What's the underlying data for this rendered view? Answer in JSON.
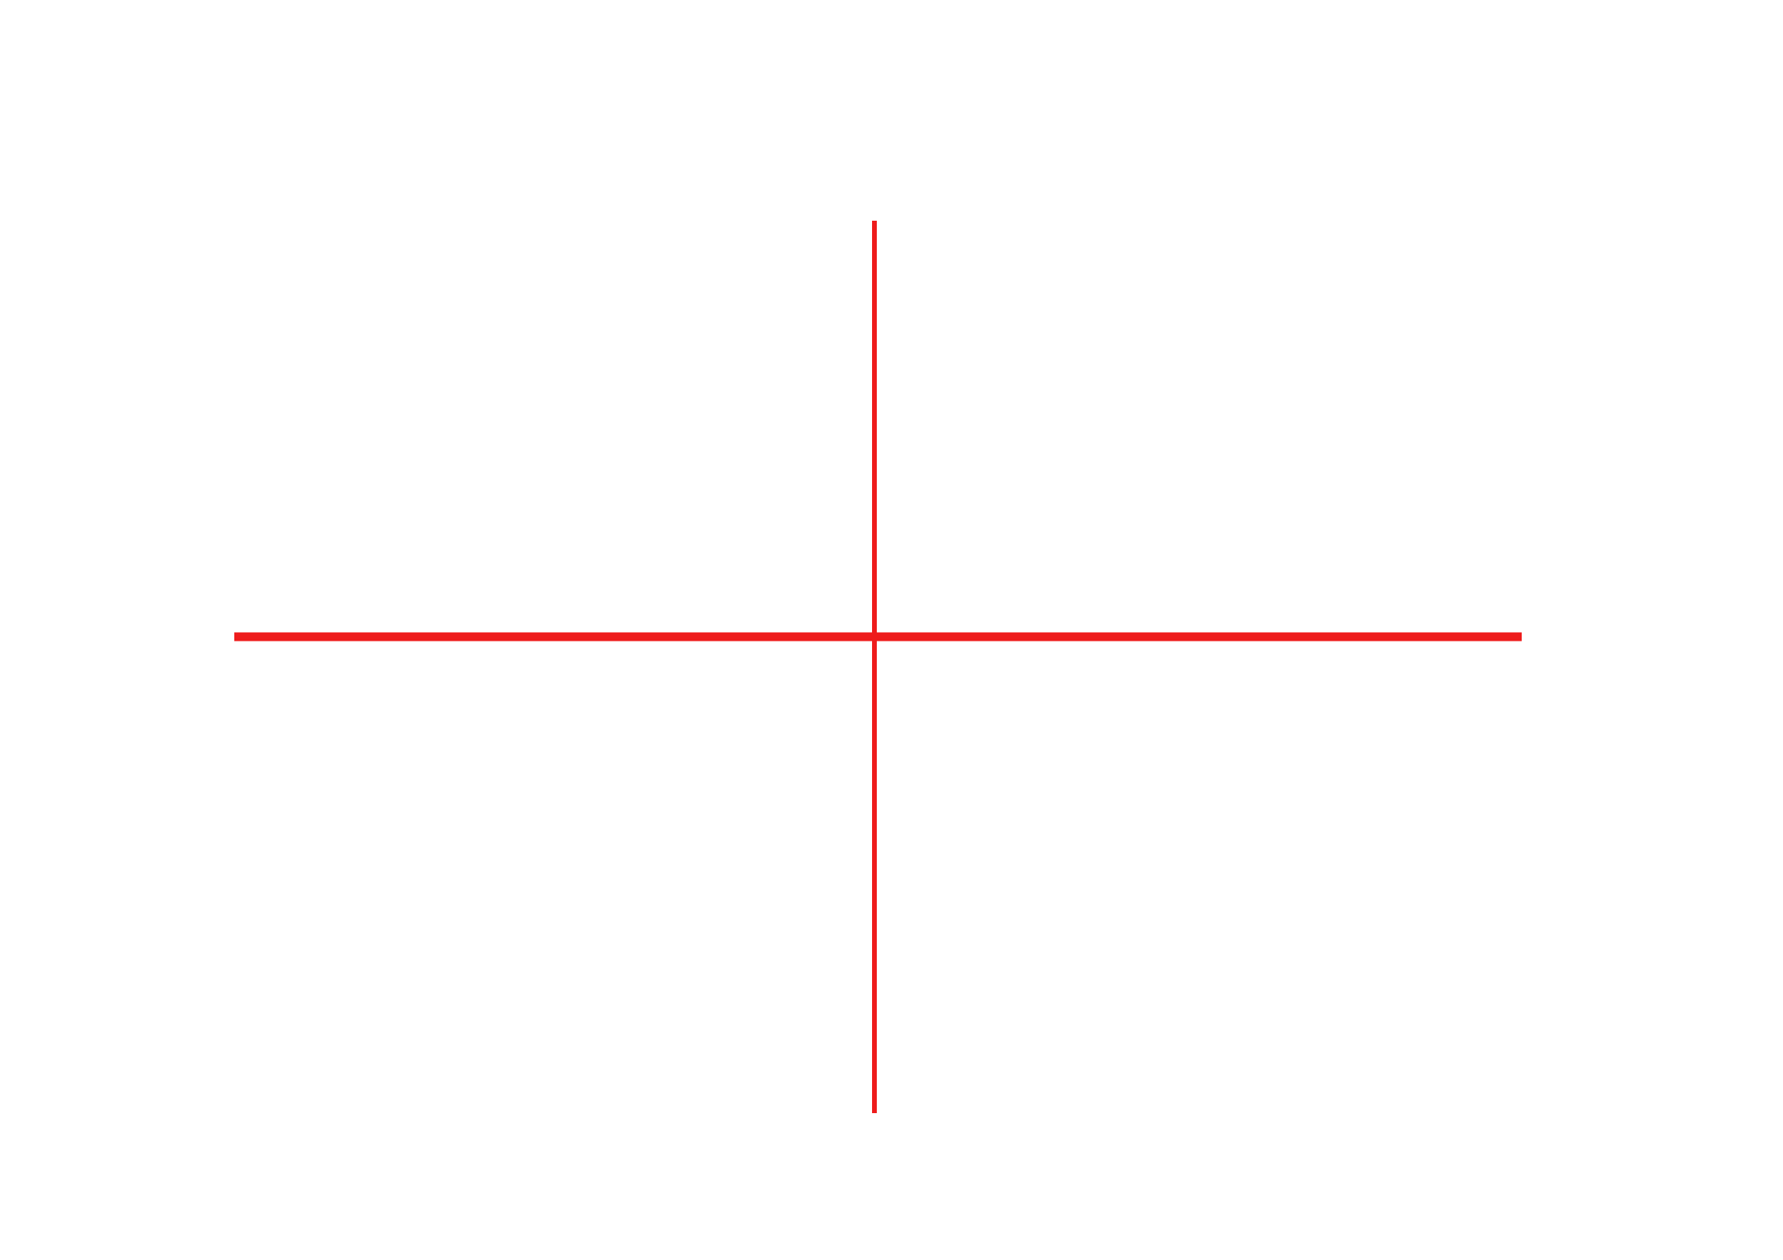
{
  "diagram": {
    "line_color": "#ee1c1c",
    "background_color": "#ffffff",
    "elements": [
      {
        "kind": "horizontal-line"
      },
      {
        "kind": "vertical-line"
      }
    ]
  }
}
